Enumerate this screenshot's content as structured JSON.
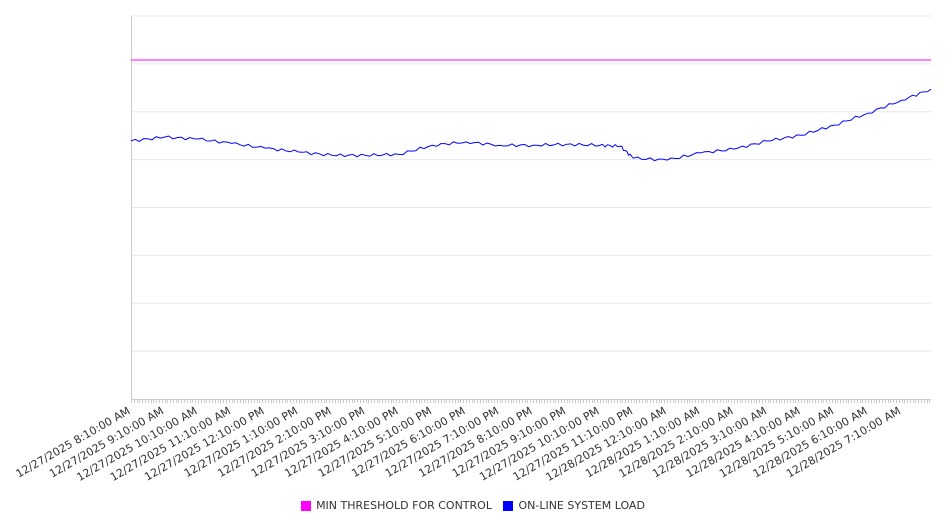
{
  "chart_data": {
    "type": "line",
    "title": "",
    "xlabel": "",
    "ylabel": "",
    "y_axis_labels_shown": false,
    "grid": true,
    "legend_position": "bottom",
    "x_unit": "hours since 12/27/2025 8:10:00 AM",
    "xlim": [
      0,
      23.88
    ],
    "ylim": [
      0,
      8
    ],
    "x_tick_labels": [
      "12/27/2025 8:10:00 AM",
      "12/27/2025 9:10:00 AM",
      "12/27/2025 10:10:00 AM",
      "12/27/2025 11:10:00 AM",
      "12/27/2025 12:10:00 PM",
      "12/27/2025 1:10:00 PM",
      "12/27/2025 2:10:00 PM",
      "12/27/2025 3:10:00 PM",
      "12/27/2025 4:10:00 PM",
      "12/27/2025 5:10:00 PM",
      "12/27/2025 6:10:00 PM",
      "12/27/2025 7:10:00 PM",
      "12/27/2025 8:10:00 PM",
      "12/27/2025 9:10:00 PM",
      "12/27/2025 10:10:00 PM",
      "12/27/2025 11:10:00 PM",
      "12/28/2025 12:10:00 AM",
      "12/28/2025 1:10:00 AM",
      "12/28/2025 2:10:00 AM",
      "12/28/2025 3:10:00 AM",
      "12/28/2025 4:10:00 AM",
      "12/28/2025 5:10:00 AM",
      "12/28/2025 6:10:00 AM",
      "12/28/2025 7:10:00 AM"
    ],
    "series": [
      {
        "name": "MIN THRESHOLD FOR CONTROL",
        "color": "#ff00ff",
        "x": [
          0,
          23.88
        ],
        "values": [
          7.08,
          7.08
        ]
      },
      {
        "name": "ON-LINE SYSTEM LOAD",
        "color": "#0000ff",
        "x": [
          0,
          1,
          2,
          3,
          4,
          5,
          6,
          7,
          8,
          9,
          10,
          11,
          12,
          13,
          14,
          14.6,
          15,
          16,
          17,
          18,
          19,
          20,
          21,
          22,
          23,
          23.88
        ],
        "values": [
          5.39,
          5.47,
          5.43,
          5.34,
          5.24,
          5.16,
          5.09,
          5.09,
          5.11,
          5.3,
          5.37,
          5.3,
          5.3,
          5.32,
          5.3,
          5.28,
          5.03,
          4.99,
          5.14,
          5.22,
          5.39,
          5.51,
          5.72,
          5.97,
          6.24,
          6.47
        ]
      }
    ]
  }
}
